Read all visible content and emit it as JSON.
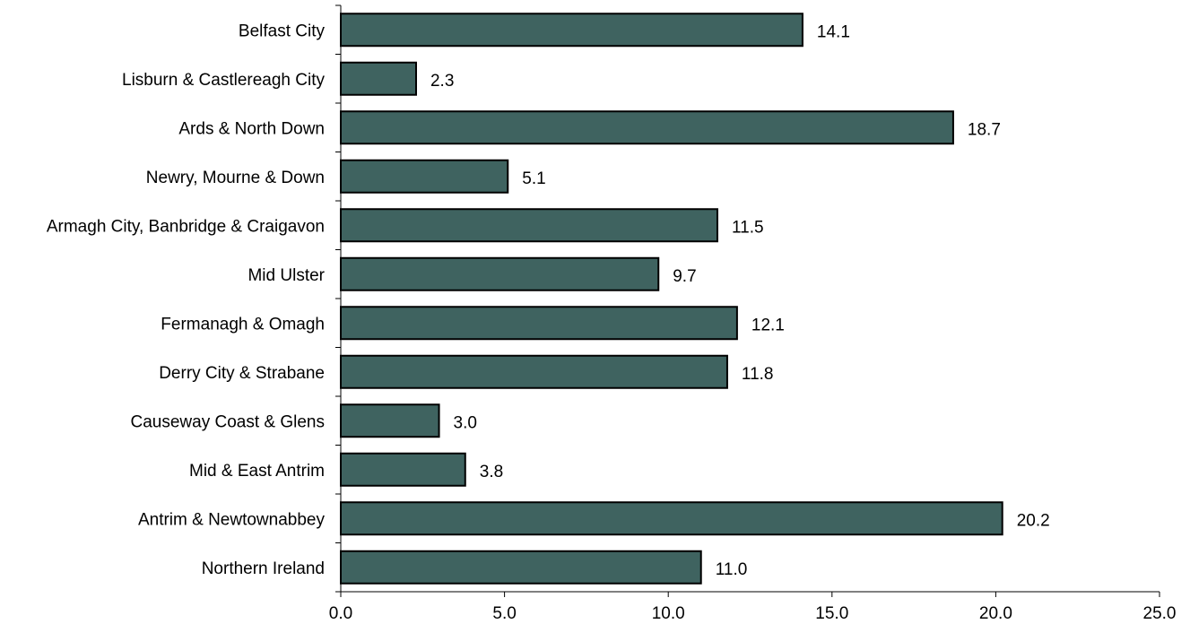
{
  "chart_data": {
    "type": "bar",
    "orientation": "horizontal",
    "title": "",
    "xlabel": "",
    "ylabel": "",
    "categories": [
      "Belfast City",
      "Lisburn & Castlereagh City",
      "Ards & North Down",
      "Newry, Mourne & Down",
      "Armagh City, Banbridge & Craigavon",
      "Mid Ulster",
      "Fermanagh & Omagh",
      "Derry City & Strabane",
      "Causeway Coast & Glens",
      "Mid & East Antrim",
      "Antrim & Newtownabbey",
      "Northern Ireland"
    ],
    "values": [
      14.1,
      2.3,
      18.7,
      5.1,
      11.5,
      9.7,
      12.1,
      11.8,
      3.0,
      3.8,
      20.2,
      11.0
    ],
    "value_labels": [
      "14.1",
      "2.3",
      "18.7",
      "5.1",
      "11.5",
      "9.7",
      "12.1",
      "11.8",
      "3.0",
      "3.8",
      "20.2",
      "11.0"
    ],
    "xlim": [
      0,
      25
    ],
    "x_ticks": [
      0,
      5,
      10,
      15,
      20,
      25
    ],
    "x_tick_labels": [
      "0.0",
      "5.0",
      "10.0",
      "15.0",
      "20.0",
      "25.0"
    ],
    "grid": false,
    "legend": "none",
    "bar_color": "#3f6360",
    "bar_edge_color": "#000000"
  }
}
